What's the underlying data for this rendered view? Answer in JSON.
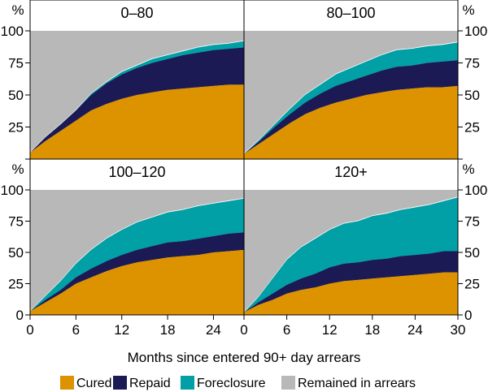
{
  "chart_data": {
    "type": "area",
    "stacked": true,
    "layout": "2x2 small multiples",
    "xlabel": "Months since entered 90+ day arrears",
    "y_unit": "%",
    "ylim": [
      0,
      100
    ],
    "yticks": [
      0,
      25,
      50,
      75,
      100
    ],
    "x": [
      0,
      2,
      4,
      6,
      8,
      10,
      12,
      14,
      16,
      18,
      20,
      22,
      24,
      26,
      28,
      30
    ],
    "legend": [
      {
        "name": "Cured",
        "color": "#dd9200"
      },
      {
        "name": "Repaid",
        "color": "#1b1a55"
      },
      {
        "name": "Foreclosure",
        "color": "#00a0a6"
      },
      {
        "name": "Remained in arrears",
        "color": "#b8b8b8"
      }
    ],
    "panels": [
      {
        "title": "0–80",
        "xlim": [
          0,
          28
        ],
        "xticks": [
          0,
          6,
          12,
          18,
          24
        ],
        "show_x_ticks": false,
        "y_axis_side": "left",
        "series": {
          "cured": [
            5,
            14,
            22,
            30,
            38,
            43,
            47,
            50,
            52,
            54,
            55,
            56,
            57,
            58,
            58
          ],
          "repaid": [
            0,
            3,
            5,
            8,
            12,
            16,
            19,
            21,
            23,
            24,
            26,
            27,
            28,
            28,
            29
          ],
          "foreclosure": [
            0,
            0,
            0,
            0,
            1,
            1,
            2,
            2,
            3,
            3,
            3,
            4,
            4,
            4,
            5
          ]
        }
      },
      {
        "title": "80–100",
        "xlim": [
          0,
          28
        ],
        "xticks": [
          0,
          6,
          12,
          18,
          24
        ],
        "show_x_ticks": false,
        "y_axis_side": "right",
        "series": {
          "cured": [
            4,
            12,
            20,
            28,
            35,
            40,
            44,
            47,
            50,
            52,
            54,
            55,
            56,
            56,
            57
          ],
          "repaid": [
            0,
            2,
            5,
            7,
            9,
            11,
            13,
            14,
            15,
            17,
            18,
            18,
            19,
            20,
            20
          ],
          "foreclosure": [
            0,
            1,
            2,
            4,
            6,
            7,
            9,
            10,
            11,
            12,
            13,
            13,
            13,
            13,
            14
          ]
        }
      },
      {
        "title": "100–120",
        "xlim": [
          0,
          28
        ],
        "xticks": [
          0,
          6,
          12,
          18,
          24
        ],
        "show_x_ticks": true,
        "y_axis_side": "left",
        "series": {
          "cured": [
            3,
            10,
            17,
            25,
            30,
            35,
            39,
            42,
            44,
            46,
            47,
            48,
            50,
            51,
            52
          ],
          "repaid": [
            0,
            2,
            3,
            5,
            7,
            8,
            9,
            10,
            11,
            12,
            12,
            13,
            13,
            14,
            14
          ],
          "foreclosure": [
            0,
            3,
            7,
            11,
            15,
            18,
            20,
            22,
            23,
            24,
            25,
            26,
            26,
            26,
            27
          ]
        }
      },
      {
        "title": "120+",
        "xlim": [
          0,
          30
        ],
        "xticks": [
          0,
          6,
          12,
          18,
          24,
          30
        ],
        "show_x_ticks": true,
        "y_axis_side": "right",
        "series": {
          "cured": [
            2,
            8,
            12,
            17,
            20,
            22,
            25,
            27,
            28,
            29,
            30,
            31,
            32,
            33,
            34,
            34
          ],
          "repaid": [
            0,
            2,
            5,
            7,
            9,
            11,
            13,
            14,
            14,
            15,
            15,
            16,
            16,
            16,
            17,
            17
          ],
          "foreclosure": [
            0,
            4,
            12,
            20,
            25,
            28,
            30,
            32,
            33,
            35,
            36,
            37,
            38,
            39,
            40,
            43
          ]
        }
      }
    ]
  }
}
